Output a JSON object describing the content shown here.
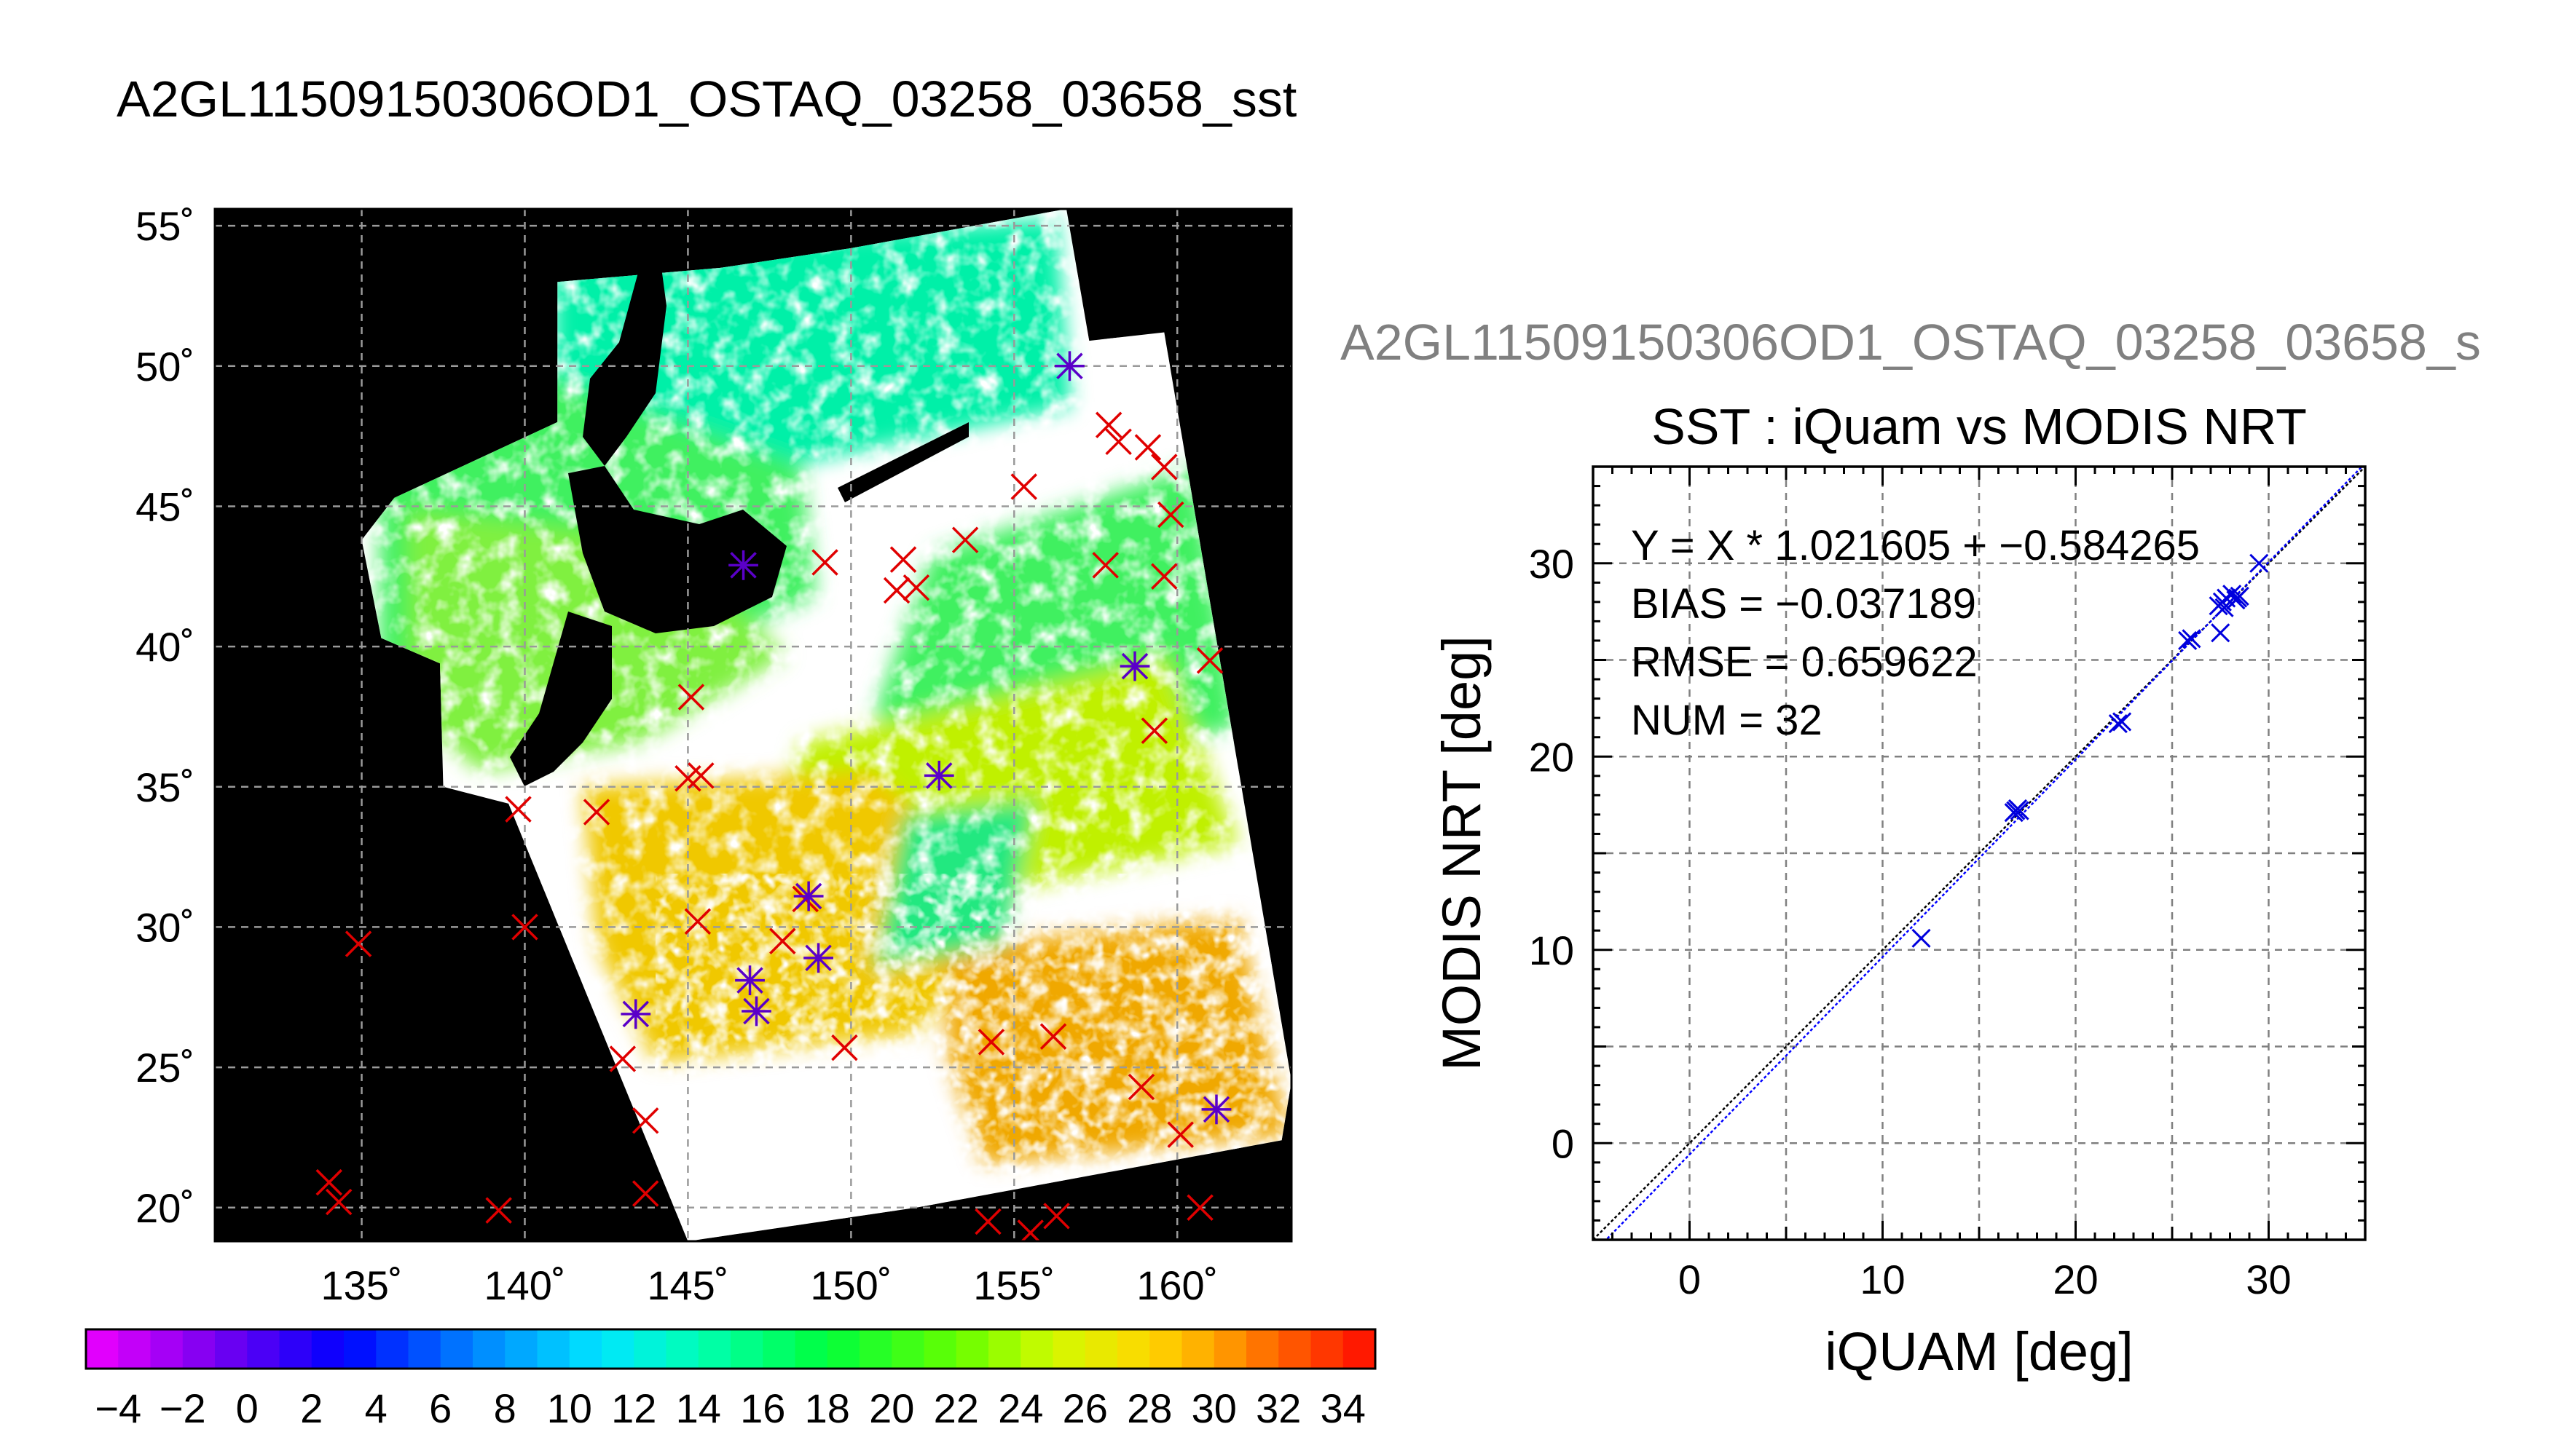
{
  "title": "A2GL11509150306OD1_OSTAQ_03258_03658_sst",
  "subtitle_partial": "A2GL11509150306OD1_OSTAQ_03258_03658_s",
  "chart_data": [
    {
      "type": "heatmap",
      "title": "A2GL11509150306OD1_OSTAQ_03258_03658_sst",
      "xlabel": "",
      "ylabel": "",
      "xlim": [
        130.5,
        163.5
      ],
      "ylim": [
        18.8,
        55.6
      ],
      "grid": true,
      "x_ticks": [
        135,
        140,
        145,
        150,
        155,
        160
      ],
      "y_ticks": [
        20,
        25,
        30,
        35,
        40,
        45,
        50,
        55
      ],
      "x_tick_labels": [
        "135˚",
        "140˚",
        "145˚",
        "150˚",
        "155˚",
        "160˚"
      ],
      "y_tick_labels": [
        "20˚",
        "25˚",
        "30˚",
        "35˚",
        "40˚",
        "45˚",
        "50˚",
        "55˚"
      ],
      "colorbar": {
        "range": [
          -5,
          35
        ],
        "step": 1,
        "tick_labels": [
          "−4",
          "−2",
          "0",
          "2",
          "4",
          "6",
          "8",
          "10",
          "12",
          "14",
          "16",
          "18",
          "20",
          "22",
          "24",
          "26",
          "28",
          "30",
          "32",
          "34"
        ],
        "tick_values": [
          -4,
          -2,
          0,
          2,
          4,
          6,
          8,
          10,
          12,
          14,
          16,
          18,
          20,
          22,
          24,
          26,
          28,
          30,
          32,
          34
        ]
      },
      "series": [
        {
          "marker": "x",
          "color": "#e00000",
          "points": [
            [
              134.0,
              20.9
            ],
            [
              134.3,
              20.2
            ],
            [
              134.9,
              29.4
            ],
            [
              139.2,
              19.9
            ],
            [
              140.0,
              30.0
            ],
            [
              139.8,
              34.2
            ],
            [
              142.2,
              34.1
            ],
            [
              143.0,
              25.3
            ],
            [
              143.7,
              23.1
            ],
            [
              143.7,
              20.5
            ],
            [
              145.1,
              38.2
            ],
            [
              145.0,
              35.3
            ],
            [
              145.4,
              35.4
            ],
            [
              145.3,
              30.2
            ],
            [
              149.2,
              43.0
            ],
            [
              151.4,
              42.0
            ],
            [
              151.6,
              43.1
            ],
            [
              152.0,
              42.1
            ],
            [
              153.5,
              43.8
            ],
            [
              155.3,
              45.7
            ],
            [
              154.2,
              19.5
            ],
            [
              154.3,
              25.9
            ],
            [
              155.5,
              19.1
            ],
            [
              156.3,
              19.7
            ],
            [
              156.2,
              26.1
            ],
            [
              157.9,
              47.9
            ],
            [
              158.2,
              47.3
            ],
            [
              157.8,
              42.9
            ],
            [
              158.9,
              24.3
            ],
            [
              159.1,
              47.1
            ],
            [
              159.6,
              46.4
            ],
            [
              159.8,
              44.7
            ],
            [
              159.6,
              42.5
            ],
            [
              159.3,
              37.0
            ],
            [
              160.1,
              22.6
            ],
            [
              160.7,
              20.0
            ],
            [
              161.0,
              39.5
            ],
            [
              149.8,
              25.7
            ],
            [
              147.9,
              29.5
            ],
            [
              148.6,
              31.0
            ]
          ]
        },
        {
          "marker": "*",
          "color": "#5a00c8",
          "points": [
            [
              146.7,
              42.9
            ],
            [
              156.7,
              50.0
            ],
            [
              158.7,
              39.3
            ],
            [
              152.7,
              35.4
            ],
            [
              148.7,
              31.1
            ],
            [
              149.0,
              28.9
            ],
            [
              146.9,
              28.1
            ],
            [
              147.1,
              27.0
            ],
            [
              143.4,
              26.9
            ],
            [
              161.2,
              23.5
            ]
          ]
        }
      ]
    },
    {
      "type": "scatter",
      "title": "SST : iQuam vs MODIS NRT",
      "xlabel": "iQUAM [deg]",
      "ylabel": "MODIS NRT [deg]",
      "xlim": [
        -5,
        35
      ],
      "ylim": [
        -5,
        35
      ],
      "x_ticks": [
        0,
        10,
        20,
        30
      ],
      "y_ticks": [
        0,
        10,
        20,
        30
      ],
      "grid": true,
      "annotations": [
        "Y = X * 1.021605 + −0.584265",
        "BIAS = −0.037189",
        "RMSE = 0.659622",
        "NUM = 32"
      ],
      "fit": {
        "slope": 1.021605,
        "intercept": -0.584265
      },
      "points": [
        [
          12.0,
          10.6
        ],
        [
          16.8,
          17.1
        ],
        [
          17.0,
          17.3
        ],
        [
          16.9,
          17.2
        ],
        [
          17.1,
          17.2
        ],
        [
          22.2,
          21.7
        ],
        [
          22.4,
          21.8
        ],
        [
          25.8,
          26.0
        ],
        [
          26.0,
          26.1
        ],
        [
          27.5,
          26.4
        ],
        [
          27.4,
          27.8
        ],
        [
          27.6,
          28.0
        ],
        [
          27.8,
          28.2
        ],
        [
          27.7,
          27.7
        ],
        [
          28.1,
          28.4
        ],
        [
          28.3,
          28.1
        ],
        [
          28.5,
          28.3
        ],
        [
          28.4,
          28.2
        ],
        [
          29.5,
          30.0
        ]
      ],
      "point_color": "#0000dd"
    }
  ]
}
